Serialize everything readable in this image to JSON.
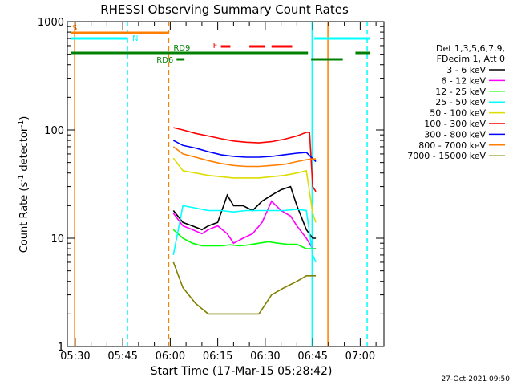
{
  "chart_data": {
    "type": "line",
    "title": "RHESSI Observing Summary Count Rates",
    "xlabel": "Start Time (17-Mar-15 05:28:42)",
    "ylabel_prefix": "Count Rate (s",
    "ylabel_sup": "-1",
    "ylabel_suffix": " detector",
    "ylabel_close": ")",
    "y_scale": "log",
    "ylim": [
      1,
      1000
    ],
    "y_ticks": [
      {
        "value": 1,
        "label": "1"
      },
      {
        "value": 10,
        "label": "10"
      },
      {
        "value": 100,
        "label": "100"
      },
      {
        "value": 1000,
        "label": "1000"
      }
    ],
    "xlim_minutes_after_0500": [
      27.5,
      77.5
    ],
    "x_ticks": [
      {
        "minute": 30,
        "label": "05:30"
      },
      {
        "minute": 45,
        "label": "05:45"
      },
      {
        "minute": 60,
        "label": "06:00"
      },
      {
        "minute": 75,
        "label": "06:15"
      },
      {
        "minute": 90,
        "label": "06:30"
      },
      {
        "minute": 105,
        "label": "06:45"
      },
      {
        "minute": 120,
        "label": "07:00"
      }
    ],
    "legend_header": [
      "Det 1,3,5,6,7,9,",
      "FDecim 1, Att 0"
    ],
    "legend_placement": "right",
    "series": [
      {
        "name": "3 - 6 keV",
        "color": "#000000",
        "points": [
          [
            61,
            18
          ],
          [
            64,
            14
          ],
          [
            67,
            13
          ],
          [
            70,
            12
          ],
          [
            72,
            13
          ],
          [
            75,
            14
          ],
          [
            78,
            25
          ],
          [
            80,
            20
          ],
          [
            83,
            20
          ],
          [
            86,
            18
          ],
          [
            89,
            22
          ],
          [
            92,
            25
          ],
          [
            95,
            28
          ],
          [
            98,
            30
          ],
          [
            100,
            20
          ],
          [
            103,
            12
          ],
          [
            105,
            10
          ],
          [
            106,
            10
          ]
        ]
      },
      {
        "name": "6 - 12 keV",
        "color": "#ff00ff",
        "points": [
          [
            61,
            17
          ],
          [
            64,
            13
          ],
          [
            67,
            12
          ],
          [
            70,
            11
          ],
          [
            72,
            12
          ],
          [
            75,
            13
          ],
          [
            78,
            11
          ],
          [
            80,
            9
          ],
          [
            83,
            10
          ],
          [
            86,
            11
          ],
          [
            89,
            14
          ],
          [
            92,
            22
          ],
          [
            95,
            18
          ],
          [
            98,
            16
          ],
          [
            100,
            13
          ],
          [
            103,
            10
          ],
          [
            105,
            8
          ],
          [
            106,
            8
          ]
        ]
      },
      {
        "name": "12 - 25 keV",
        "color": "#00ff00",
        "points": [
          [
            61,
            12
          ],
          [
            64,
            10
          ],
          [
            67,
            9
          ],
          [
            70,
            8.5
          ],
          [
            73,
            8.5
          ],
          [
            76,
            8.5
          ],
          [
            79,
            8.7
          ],
          [
            82,
            8.5
          ],
          [
            85,
            8.7
          ],
          [
            88,
            9
          ],
          [
            91,
            9.3
          ],
          [
            94,
            9
          ],
          [
            97,
            8.8
          ],
          [
            100,
            8.8
          ],
          [
            103,
            8
          ],
          [
            105,
            8
          ],
          [
            106,
            8
          ]
        ]
      },
      {
        "name": "25 - 50 keV",
        "color": "#00ffff",
        "points": [
          [
            61,
            7
          ],
          [
            64,
            20
          ],
          [
            68,
            19
          ],
          [
            72,
            18
          ],
          [
            76,
            18
          ],
          [
            80,
            17.5
          ],
          [
            84,
            18
          ],
          [
            88,
            18
          ],
          [
            92,
            18
          ],
          [
            96,
            18
          ],
          [
            100,
            18.5
          ],
          [
            103,
            18
          ],
          [
            105,
            7
          ],
          [
            106,
            6
          ]
        ]
      },
      {
        "name": "50 - 100 keV",
        "color": "#dddd00",
        "points": [
          [
            61,
            55
          ],
          [
            64,
            42
          ],
          [
            68,
            40
          ],
          [
            72,
            38
          ],
          [
            76,
            37
          ],
          [
            80,
            36
          ],
          [
            84,
            36
          ],
          [
            88,
            36
          ],
          [
            92,
            37
          ],
          [
            96,
            38
          ],
          [
            100,
            40
          ],
          [
            103,
            42
          ],
          [
            105,
            17
          ],
          [
            106,
            14
          ]
        ]
      },
      {
        "name": "100 - 300 keV",
        "color": "#ff0000",
        "points": [
          [
            61,
            105
          ],
          [
            64,
            100
          ],
          [
            68,
            93
          ],
          [
            72,
            88
          ],
          [
            76,
            83
          ],
          [
            80,
            79
          ],
          [
            84,
            77
          ],
          [
            88,
            76
          ],
          [
            92,
            78
          ],
          [
            96,
            82
          ],
          [
            100,
            88
          ],
          [
            103,
            95
          ],
          [
            104,
            95
          ],
          [
            105,
            30
          ],
          [
            106,
            27
          ]
        ]
      },
      {
        "name": "300 - 800 keV",
        "color": "#0000ff",
        "points": [
          [
            61,
            80
          ],
          [
            64,
            72
          ],
          [
            68,
            68
          ],
          [
            72,
            63
          ],
          [
            76,
            59
          ],
          [
            80,
            57
          ],
          [
            84,
            56
          ],
          [
            88,
            56
          ],
          [
            92,
            57
          ],
          [
            96,
            59
          ],
          [
            100,
            61
          ],
          [
            103,
            62
          ],
          [
            104,
            58
          ],
          [
            106,
            51
          ]
        ]
      },
      {
        "name": "800 - 7000 keV",
        "color": "#ff8000",
        "points": [
          [
            61,
            70
          ],
          [
            64,
            60
          ],
          [
            68,
            56
          ],
          [
            72,
            52
          ],
          [
            76,
            49
          ],
          [
            80,
            47
          ],
          [
            84,
            46
          ],
          [
            88,
            46
          ],
          [
            92,
            47
          ],
          [
            96,
            48
          ],
          [
            100,
            51
          ],
          [
            103,
            53
          ],
          [
            105,
            54
          ],
          [
            106,
            54
          ]
        ]
      },
      {
        "name": "7000 - 15000 keV",
        "color": "#808000",
        "points": [
          [
            61,
            6
          ],
          [
            64,
            3.5
          ],
          [
            68,
            2.5
          ],
          [
            72,
            2
          ],
          [
            76,
            2
          ],
          [
            80,
            2
          ],
          [
            84,
            2
          ],
          [
            88,
            2
          ],
          [
            92,
            3
          ],
          [
            96,
            3.5
          ],
          [
            100,
            4
          ],
          [
            103,
            4.5
          ],
          [
            105,
            4.5
          ],
          [
            106,
            4.5
          ]
        ]
      }
    ],
    "flags": [
      {
        "label": "S",
        "color": "#ff8000",
        "segments": [
          [
            28.5,
            59.5
          ]
        ]
      },
      {
        "label": "N",
        "color": "#00ffff",
        "segments": [
          [
            28.5,
            46.5
          ],
          [
            105.5,
            123
          ]
        ]
      },
      {
        "label": "RD9",
        "color": "#008000",
        "segments": [
          [
            28.5,
            103.5
          ],
          [
            118.5,
            123
          ]
        ]
      },
      {
        "label": "RD6",
        "color": "#008000",
        "segments": [
          [
            62,
            64.5
          ],
          [
            104.5,
            114.5
          ]
        ]
      },
      {
        "label": "F",
        "color": "#ff0000",
        "segments": [
          [
            76,
            79
          ],
          [
            85,
            90
          ],
          [
            92,
            98.5
          ]
        ]
      }
    ],
    "vertical_markers": [
      {
        "minute": 29.8,
        "color": "#ff8000",
        "style": "solid"
      },
      {
        "minute": 46.5,
        "color": "#00ffff",
        "style": "dashed"
      },
      {
        "minute": 59.5,
        "color": "#ff8000",
        "style": "dashed"
      },
      {
        "minute": 104.8,
        "color": "#00ffff",
        "style": "solid"
      },
      {
        "minute": 109.8,
        "color": "#ff8000",
        "style": "solid"
      },
      {
        "minute": 122.2,
        "color": "#00ffff",
        "style": "dashed"
      }
    ],
    "footer_date": "27-Oct-2021 09:50"
  }
}
